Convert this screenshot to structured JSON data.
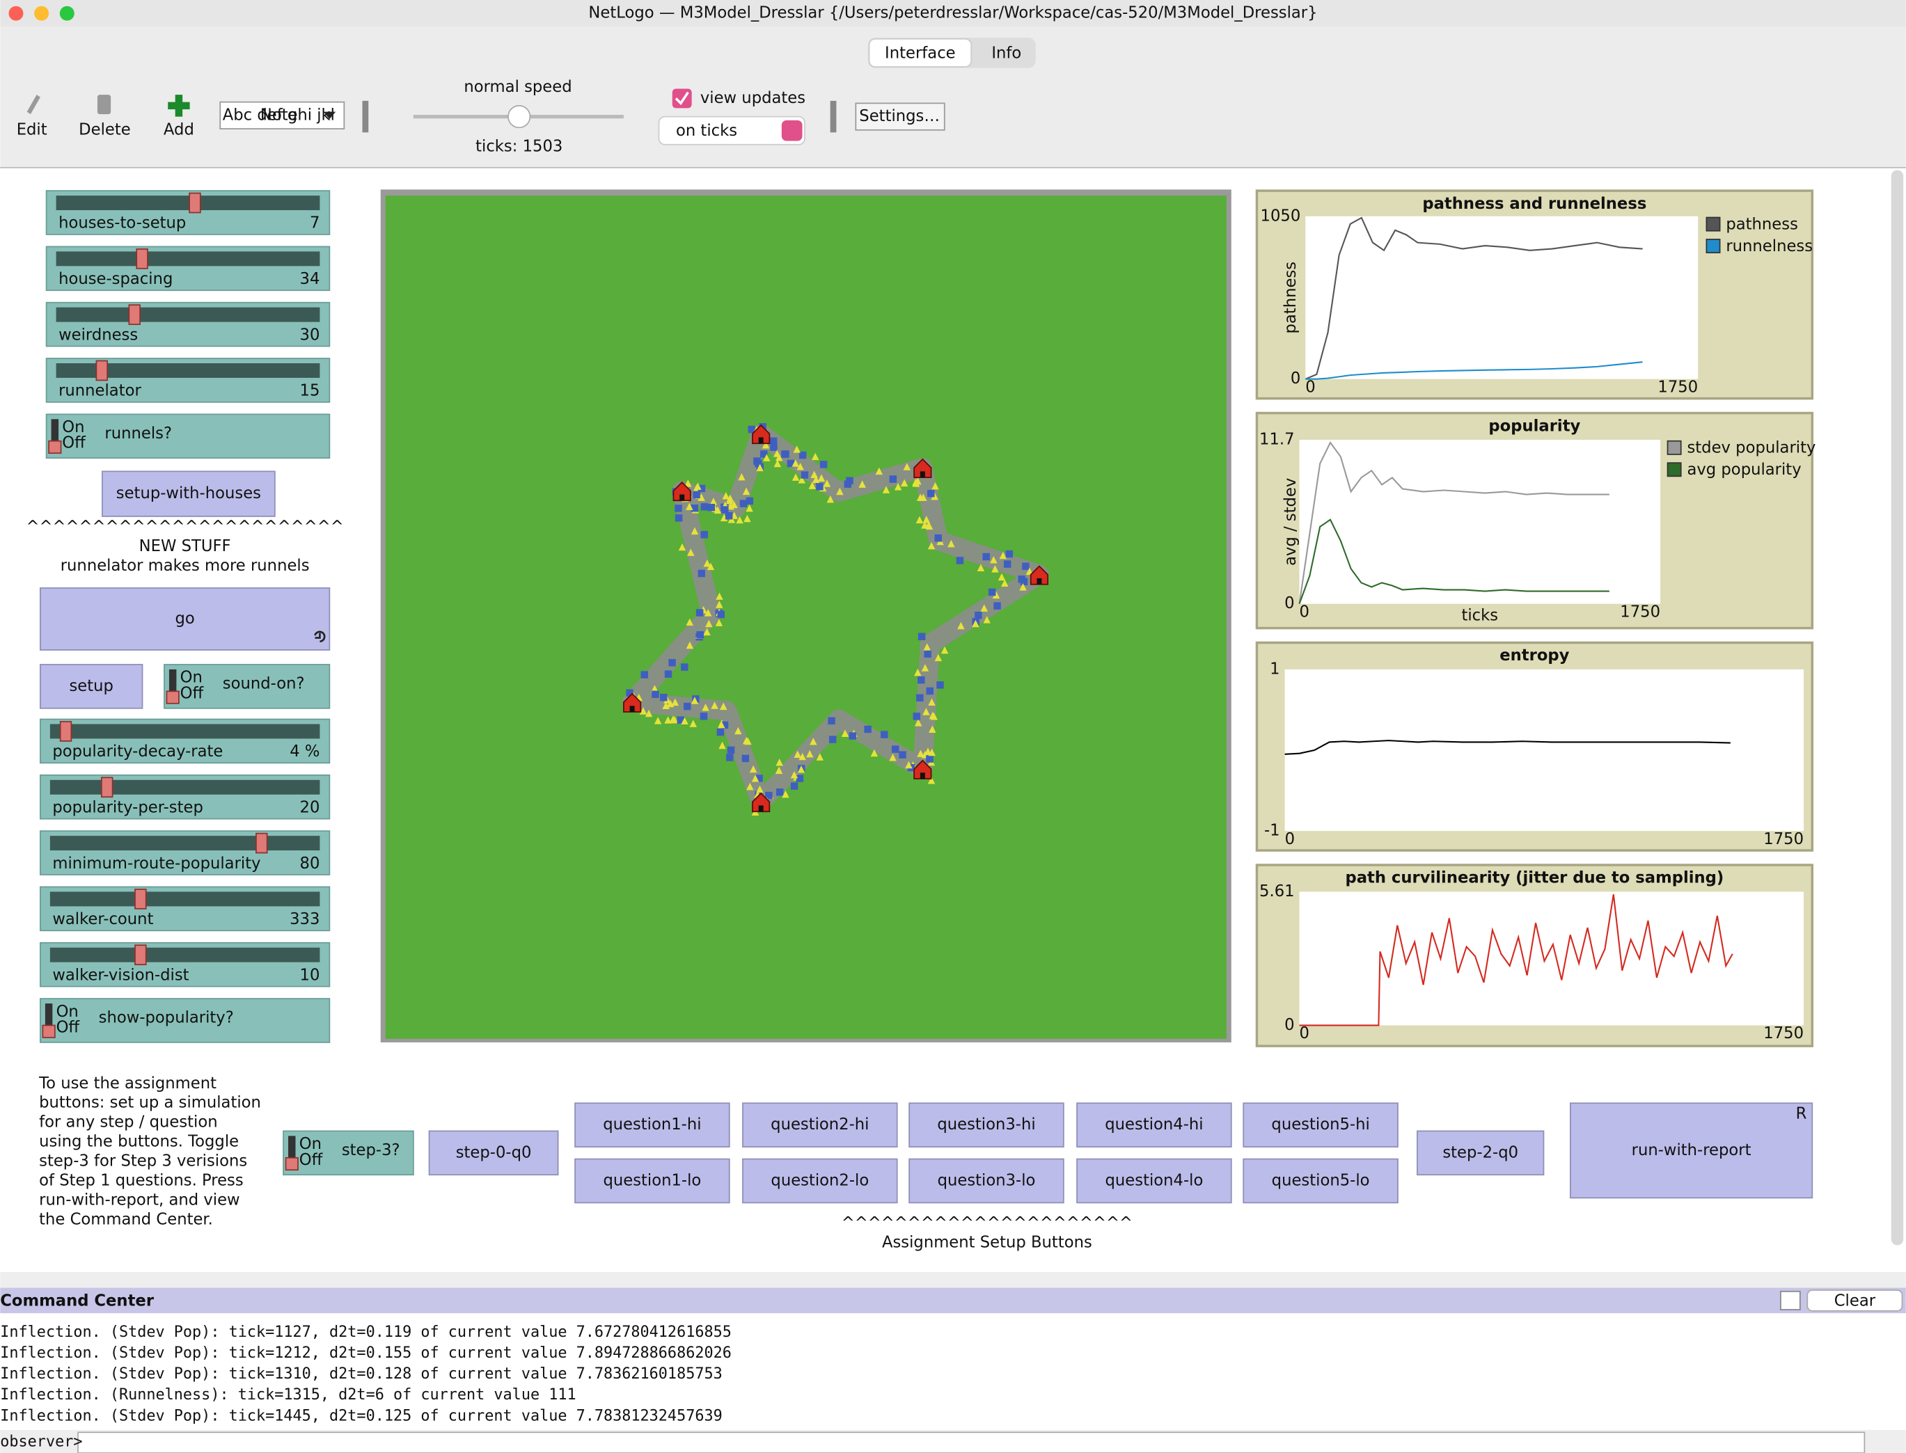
{
  "window": {
    "title": "NetLogo — M3Model_Dresslar {/Users/peterdresslar/Workspace/cas-520/M3Model_Dresslar}"
  },
  "toolbar": {
    "tabs": [
      "Interface",
      "Info"
    ],
    "edit": "Edit",
    "delete": "Delete",
    "add": "Add",
    "widget_icon": "Abc def ghi jkl",
    "widget_type": "Note",
    "speed_label": "normal speed",
    "ticks": "ticks: 1503",
    "view_updates": "view updates",
    "update_mode": "on ticks",
    "settings": "Settings…"
  },
  "switch_labels": {
    "on": "On",
    "off": "Off"
  },
  "sliders": [
    {
      "name": "houses-to-setup",
      "value": 7
    },
    {
      "name": "house-spacing",
      "value": 34
    },
    {
      "name": "weirdness",
      "value": 30
    },
    {
      "name": "runnelator",
      "value": 15
    },
    {
      "name": "popularity-decay-rate",
      "value": 4,
      "value_label": "4 %"
    },
    {
      "name": "popularity-per-step",
      "value": 20
    },
    {
      "name": "minimum-route-popularity",
      "value": 80
    },
    {
      "name": "walker-count",
      "value": 333
    },
    {
      "name": "walker-vision-dist",
      "value": 10
    }
  ],
  "switches": [
    {
      "name": "runnels?"
    },
    {
      "name": "sound-on?"
    },
    {
      "name": "show-popularity?"
    },
    {
      "name": "step-3?"
    }
  ],
  "buttons": {
    "setup_with_houses": "setup-with-houses",
    "go": "go",
    "setup": "setup",
    "step_0": "step-0-q0",
    "questions_hi": [
      "question1-hi",
      "question2-hi",
      "question3-hi",
      "question4-hi",
      "question5-hi"
    ],
    "questions_lo": [
      "question1-lo",
      "question2-lo",
      "question3-lo",
      "question4-lo",
      "question5-lo"
    ],
    "step_2": "step-2-q0",
    "run_with_report": "run-with-report",
    "run_with_report_key": "R"
  },
  "notes": {
    "new_stuff": [
      "^^^^^^^^^^^^^^^^^^^^^^^^",
      "NEW STUFF",
      "runnelator makes more runnels"
    ],
    "instructions": [
      "To use the assignment",
      "buttons: set up a simulation",
      "for any step / question",
      "using the buttons. Toggle",
      "step-3 for Step 3 verisions",
      "of Step 1 questions. Press",
      "run-with-report, and view",
      "the Command Center."
    ],
    "assignment": [
      "^^^^^^^^^^^^^^^^^^^^^^",
      "Assignment Setup Buttons"
    ]
  },
  "plots": [
    {
      "type": "line",
      "title": "pathness and runnelness",
      "ylabel": "pathness",
      "xlim": [
        0,
        1750
      ],
      "ylim": [
        0,
        1050
      ],
      "xticks": [
        0,
        1750
      ],
      "yticks": [
        0,
        1050
      ],
      "legend": true,
      "x": [
        0,
        50,
        100,
        150,
        200,
        250,
        300,
        350,
        400,
        450,
        500,
        600,
        700,
        800,
        900,
        1000,
        1100,
        1200,
        1300,
        1400,
        1503
      ],
      "series": [
        {
          "name": "pathness",
          "color": "#555555",
          "values": [
            0,
            30,
            300,
            800,
            1000,
            1040,
            880,
            830,
            960,
            930,
            880,
            870,
            840,
            860,
            850,
            830,
            840,
            860,
            880,
            850,
            840
          ]
        },
        {
          "name": "runnelness",
          "color": "#1f8ccc",
          "values": [
            0,
            0,
            5,
            15,
            25,
            30,
            35,
            40,
            42,
            45,
            48,
            52,
            55,
            58,
            60,
            62,
            66,
            72,
            80,
            95,
            110
          ]
        }
      ]
    },
    {
      "type": "line",
      "title": "popularity",
      "ylabel": "avg / stdev",
      "xlabel": "ticks",
      "xlim": [
        0,
        1750
      ],
      "ylim": [
        0,
        11.7
      ],
      "xticks": [
        0,
        1750
      ],
      "yticks": [
        0,
        11.7
      ],
      "legend": true,
      "x": [
        0,
        50,
        100,
        150,
        200,
        250,
        300,
        350,
        400,
        450,
        500,
        600,
        700,
        800,
        900,
        1000,
        1100,
        1200,
        1300,
        1400,
        1503
      ],
      "series": [
        {
          "name": "stdev popularity",
          "color": "#999999",
          "values": [
            0,
            5,
            10,
            11.5,
            10.5,
            8,
            9,
            9.5,
            8.5,
            9,
            8.2,
            8,
            8.1,
            8,
            7.9,
            8,
            7.8,
            7.9,
            7.8,
            7.8,
            7.8
          ]
        },
        {
          "name": "avg popularity",
          "color": "#2f6b2a",
          "values": [
            0,
            2,
            5.5,
            6,
            4.5,
            2.5,
            1.5,
            1.2,
            1.5,
            1.3,
            1,
            1.1,
            1,
            1,
            0.9,
            1,
            0.9,
            0.9,
            0.9,
            0.9,
            0.9
          ]
        }
      ]
    },
    {
      "type": "line",
      "title": "entropy",
      "xlim": [
        0,
        1750
      ],
      "ylim": [
        -1,
        1
      ],
      "xticks": [
        0,
        1750
      ],
      "yticks": [
        -1,
        1
      ],
      "legend": false,
      "x": [
        0,
        50,
        100,
        150,
        200,
        250,
        300,
        350,
        400,
        450,
        500,
        600,
        700,
        800,
        900,
        1000,
        1100,
        1200,
        1300,
        1400,
        1503
      ],
      "series": [
        {
          "name": "entropy",
          "color": "#000000",
          "values": [
            -0.05,
            -0.04,
            0,
            0.1,
            0.11,
            0.1,
            0.11,
            0.12,
            0.11,
            0.1,
            0.11,
            0.1,
            0.1,
            0.11,
            0.1,
            0.1,
            0.1,
            0.1,
            0.1,
            0.1,
            0.09
          ]
        }
      ]
    },
    {
      "type": "line",
      "title": "path curvilinearity (jitter due to sampling)",
      "xlim": [
        0,
        1750
      ],
      "ylim": [
        0,
        5.61
      ],
      "xticks": [
        0,
        1750
      ],
      "yticks": [
        0,
        5.61
      ],
      "legend": false,
      "x": [
        0,
        100,
        200,
        275,
        280,
        310,
        340,
        370,
        400,
        430,
        460,
        490,
        520,
        550,
        580,
        610,
        640,
        670,
        700,
        730,
        760,
        790,
        820,
        850,
        880,
        910,
        940,
        970,
        1000,
        1030,
        1060,
        1090,
        1120,
        1150,
        1180,
        1210,
        1240,
        1270,
        1300,
        1330,
        1360,
        1390,
        1420,
        1450,
        1480,
        1503
      ],
      "series": [
        {
          "name": "curvilinearity",
          "color": "#d42a20",
          "values": [
            0,
            0,
            0,
            0,
            3.1,
            2.0,
            4.2,
            2.6,
            3.5,
            1.7,
            3.9,
            2.8,
            4.5,
            2.2,
            3.3,
            2.9,
            1.8,
            4.0,
            3.0,
            2.5,
            3.7,
            2.1,
            4.3,
            2.7,
            3.4,
            1.9,
            3.8,
            2.6,
            4.1,
            2.4,
            3.2,
            5.5,
            2.3,
            3.6,
            2.8,
            4.4,
            2.0,
            3.3,
            2.9,
            3.9,
            2.2,
            3.5,
            2.7,
            4.6,
            2.5,
            3.0
          ]
        }
      ]
    }
  ],
  "command_center": {
    "title": "Command Center",
    "clear": "Clear",
    "prompt": "observer>",
    "output": [
      "Inflection. (Stdev Pop): tick=1127, d2t=0.119 of current value 7.672780412616855",
      "Inflection. (Stdev Pop): tick=1212, d2t=0.155 of current value 7.894728866862026",
      "Inflection. (Stdev Pop): tick=1310, d2t=0.128 of current value 7.78362160185753",
      "Inflection. (Runnelness): tick=1315, d2t=6 of current value 111",
      "Inflection. (Stdev Pop): tick=1445, d2t=0.125 of current value 7.78381232457639"
    ]
  }
}
